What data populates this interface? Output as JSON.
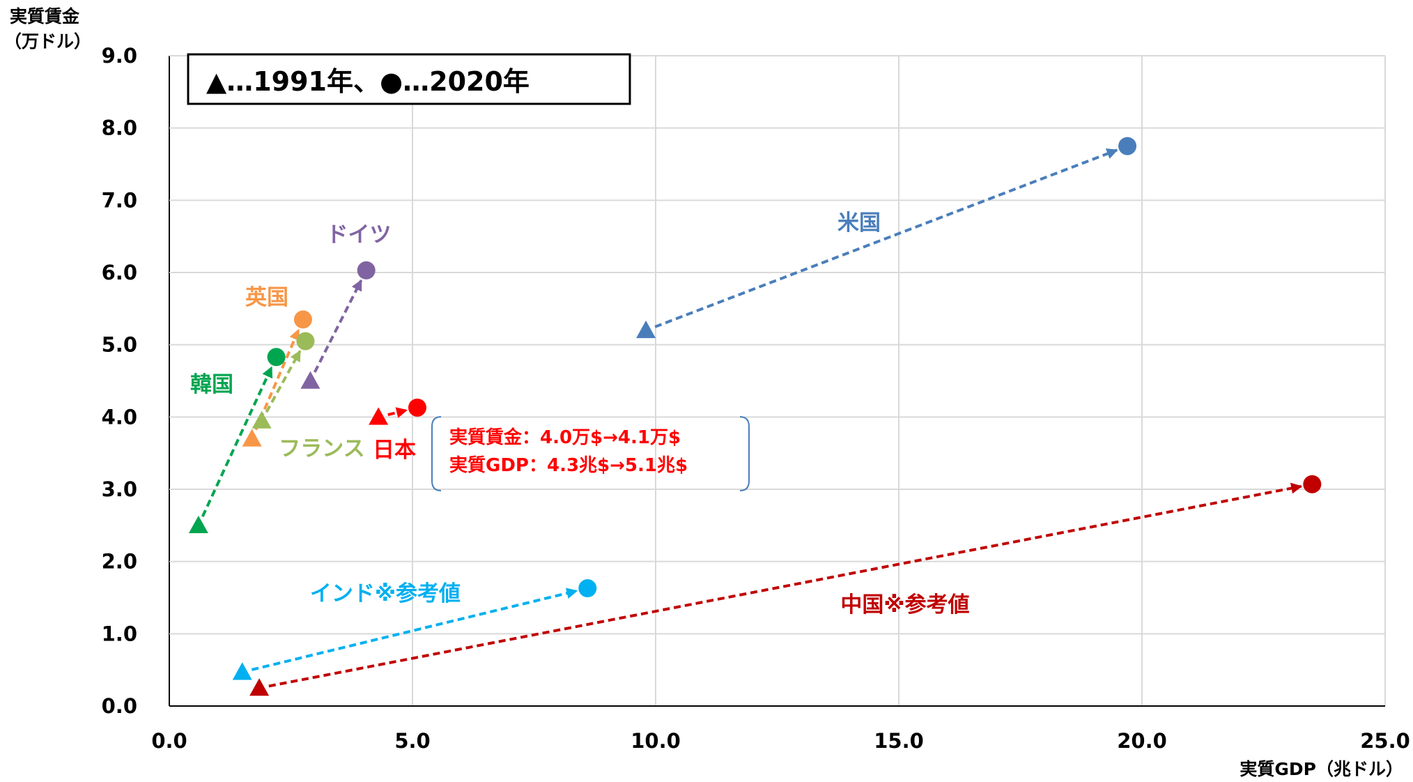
{
  "chart_data": {
    "type": "scatter",
    "xlabel": "実質GDP（兆ドル）",
    "ylabel_line1": "実質賃金",
    "ylabel_line2": "（万ドル）",
    "xlim": [
      0,
      25
    ],
    "ylim": [
      0,
      9
    ],
    "x_ticks": [
      "0.0",
      "5.0",
      "10.0",
      "15.0",
      "20.0",
      "25.0"
    ],
    "y_ticks": [
      "0.0",
      "1.0",
      "2.0",
      "3.0",
      "4.0",
      "5.0",
      "6.0",
      "7.0",
      "8.0",
      "9.0"
    ],
    "grid": true,
    "legend_text": "▲…1991年、●…2020年",
    "series": [
      {
        "name": "米国",
        "color": "#4a7ebb",
        "from": {
          "x": 9.8,
          "y": 5.2
        },
        "to": {
          "x": 19.7,
          "y": 7.75
        }
      },
      {
        "name": "ドイツ",
        "color": "#8064a2",
        "from": {
          "x": 2.9,
          "y": 4.5
        },
        "to": {
          "x": 4.05,
          "y": 6.03
        }
      },
      {
        "name": "英国",
        "color": "#f79646",
        "from": {
          "x": 1.7,
          "y": 3.7
        },
        "to": {
          "x": 2.75,
          "y": 5.35
        }
      },
      {
        "name": "フランス",
        "color": "#9bbb59",
        "from": {
          "x": 1.9,
          "y": 3.95
        },
        "to": {
          "x": 2.8,
          "y": 5.05
        }
      },
      {
        "name": "韓国",
        "color": "#00a550",
        "from": {
          "x": 0.6,
          "y": 2.5
        },
        "to": {
          "x": 2.2,
          "y": 4.83
        }
      },
      {
        "name": "日本",
        "color": "#ff0000",
        "from": {
          "x": 4.3,
          "y": 4.0
        },
        "to": {
          "x": 5.1,
          "y": 4.13
        }
      },
      {
        "name": "インド※参考値",
        "color": "#00b0f0",
        "from": {
          "x": 1.5,
          "y": 0.47
        },
        "to": {
          "x": 8.6,
          "y": 1.63
        }
      },
      {
        "name": "中国※参考値",
        "color": "#c00000",
        "from": {
          "x": 1.85,
          "y": 0.25
        },
        "to": {
          "x": 23.5,
          "y": 3.07
        }
      }
    ],
    "annotation": {
      "color": "#ff0000",
      "line1": "実質賃金：4.0万$→4.1万$",
      "line2": "実質GDP：4.3兆$→5.1兆$"
    }
  }
}
